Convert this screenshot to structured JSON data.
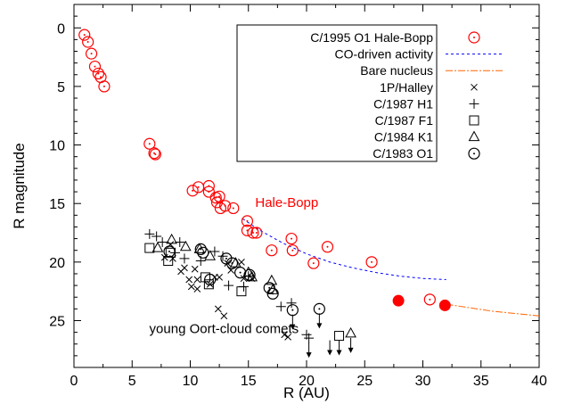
{
  "chart_data": {
    "type": "scatter",
    "xlabel": "R (AU)",
    "ylabel": "R magnitude",
    "xlim": [
      0,
      40
    ],
    "ylim": [
      -2,
      29
    ],
    "y_inverted": true,
    "xticks": [
      0,
      5,
      10,
      15,
      20,
      25,
      30,
      35,
      40
    ],
    "yticks": [
      0,
      5,
      10,
      15,
      20,
      25
    ],
    "grid": false,
    "legend_position": "top-right",
    "annotations": [
      {
        "text": "Hale-Bopp",
        "x": 18.3,
        "y": 14.9,
        "color": "#ff0000"
      },
      {
        "text": "young Oort-cloud comets",
        "x": 12.9,
        "y": 25.7,
        "color": "#000000"
      }
    ],
    "series": [
      {
        "name": "C/1995 O1 Hale-Bopp",
        "marker": "circle-dot",
        "color": "#ff0000",
        "points": [
          [
            0.9,
            0.6
          ],
          [
            1.2,
            1.2
          ],
          [
            1.5,
            2.2
          ],
          [
            1.8,
            3.3
          ],
          [
            2.1,
            3.9
          ],
          [
            2.3,
            4.2
          ],
          [
            2.6,
            5.0
          ],
          [
            6.5,
            9.9
          ],
          [
            6.9,
            10.7
          ],
          [
            7.0,
            10.8
          ],
          [
            10.2,
            13.9
          ],
          [
            10.7,
            13.6
          ],
          [
            11.6,
            13.5
          ],
          [
            11.6,
            14.0
          ],
          [
            12.2,
            14.5
          ],
          [
            12.3,
            14.9
          ],
          [
            12.5,
            14.4
          ],
          [
            12.6,
            15.4
          ],
          [
            13.0,
            15.2
          ],
          [
            13.7,
            15.4
          ],
          [
            14.9,
            16.5
          ],
          [
            14.9,
            17.3
          ],
          [
            15.4,
            17.5
          ],
          [
            15.7,
            17.5
          ],
          [
            17.0,
            19.0
          ],
          [
            18.7,
            18.0
          ],
          [
            18.8,
            19.0
          ],
          [
            20.6,
            20.1
          ],
          [
            21.8,
            18.7
          ],
          [
            25.6,
            20.0
          ],
          [
            30.6,
            23.2
          ]
        ]
      },
      {
        "name": "Hale-Bopp filled",
        "marker": "filled-circle",
        "color": "#ff0000",
        "points": [
          [
            27.9,
            23.3
          ],
          [
            31.9,
            23.7
          ]
        ]
      },
      {
        "name": "CO-driven activity",
        "line": "dashed",
        "color": "#0000ff",
        "points": [
          [
            14.5,
            16.3
          ],
          [
            16,
            17.3
          ],
          [
            18,
            18.4
          ],
          [
            20,
            19.3
          ],
          [
            22,
            20.0
          ],
          [
            24,
            20.5
          ],
          [
            26,
            20.9
          ],
          [
            28,
            21.2
          ],
          [
            30,
            21.4
          ],
          [
            32,
            21.5
          ]
        ]
      },
      {
        "name": "Bare nucleus",
        "line": "dash-dot",
        "color": "#ff6600",
        "points": [
          [
            32,
            23.6
          ],
          [
            34,
            23.9
          ],
          [
            36,
            24.2
          ],
          [
            38,
            24.4
          ],
          [
            40,
            24.6
          ]
        ]
      },
      {
        "name": "1P/Halley",
        "marker": "x",
        "color": "#000000",
        "points": [
          [
            7.8,
            19.6
          ],
          [
            8.3,
            18.5
          ],
          [
            8.5,
            19.7
          ],
          [
            9.2,
            20.8
          ],
          [
            9.5,
            20.5
          ],
          [
            9.9,
            21.5
          ],
          [
            10.4,
            20.6
          ],
          [
            10.6,
            21.5
          ],
          [
            10.1,
            22.1
          ],
          [
            10.6,
            22.3
          ],
          [
            11.7,
            21.9
          ],
          [
            12.1,
            21.3
          ],
          [
            12.5,
            21.3
          ],
          [
            13.2,
            20.1
          ],
          [
            13.5,
            20.7
          ],
          [
            14.4,
            20.0
          ],
          [
            14.6,
            21.4
          ],
          [
            15.3,
            21.4
          ],
          [
            12.4,
            24.0
          ],
          [
            12.9,
            24.6
          ],
          [
            18.1,
            26.2
          ],
          [
            18.4,
            26.4
          ]
        ]
      },
      {
        "name": "C/1987 H1",
        "marker": "plus",
        "color": "#000000",
        "points": [
          [
            6.5,
            17.6
          ],
          [
            7.1,
            17.8
          ],
          [
            7.6,
            18.3
          ],
          [
            8.7,
            19.2
          ],
          [
            9.1,
            18.3
          ],
          [
            9.5,
            19.7
          ],
          [
            10.9,
            19.9
          ],
          [
            12.1,
            19.1
          ],
          [
            12.8,
            19.5
          ],
          [
            13.3,
            22.0
          ],
          [
            14.6,
            22.1
          ],
          [
            15.0,
            21.2
          ],
          [
            17.8,
            23.8
          ],
          [
            18.7,
            23.5
          ],
          [
            20.0,
            26.2
          ],
          [
            20.2,
            26.5
          ]
        ]
      },
      {
        "name": "C/1987 F1",
        "marker": "square",
        "color": "#000000",
        "points": [
          [
            6.5,
            18.8
          ],
          [
            8.1,
            19.9
          ],
          [
            8.3,
            19.2
          ],
          [
            11.3,
            21.3
          ],
          [
            11.6,
            21.9
          ],
          [
            14.4,
            22.5
          ],
          [
            22.8,
            26.3
          ]
        ]
      },
      {
        "name": "C/1984 K1",
        "marker": "triangle",
        "color": "#000000",
        "points": [
          [
            7.2,
            18.8
          ],
          [
            8.4,
            18.1
          ],
          [
            9.6,
            18.7
          ],
          [
            10.8,
            18.9
          ],
          [
            11.7,
            19.5
          ],
          [
            13.9,
            20.1
          ],
          [
            15.0,
            20.9
          ],
          [
            15.3,
            21.3
          ],
          [
            17.0,
            21.6
          ],
          [
            17.1,
            22.4
          ],
          [
            23.8,
            26.1
          ]
        ]
      },
      {
        "name": "C/1983 O1",
        "marker": "circle-dot",
        "color": "#000000",
        "points": [
          [
            8.2,
            19.1
          ],
          [
            10.9,
            18.9
          ],
          [
            11.1,
            19.2
          ],
          [
            11.7,
            21.5
          ],
          [
            13.1,
            19.7
          ],
          [
            13.6,
            20.1
          ],
          [
            14.3,
            20.9
          ],
          [
            15.1,
            21.1
          ],
          [
            16.8,
            22.2
          ],
          [
            17.1,
            22.7
          ],
          [
            18.8,
            24.1
          ],
          [
            21.1,
            24.0
          ]
        ]
      }
    ],
    "upper_limits": [
      [
        18.8,
        24.1
      ],
      [
        20.2,
        26.5
      ],
      [
        21.1,
        24.0
      ],
      [
        22.0,
        26.3
      ],
      [
        22.8,
        26.3
      ],
      [
        23.8,
        26.1
      ]
    ]
  }
}
